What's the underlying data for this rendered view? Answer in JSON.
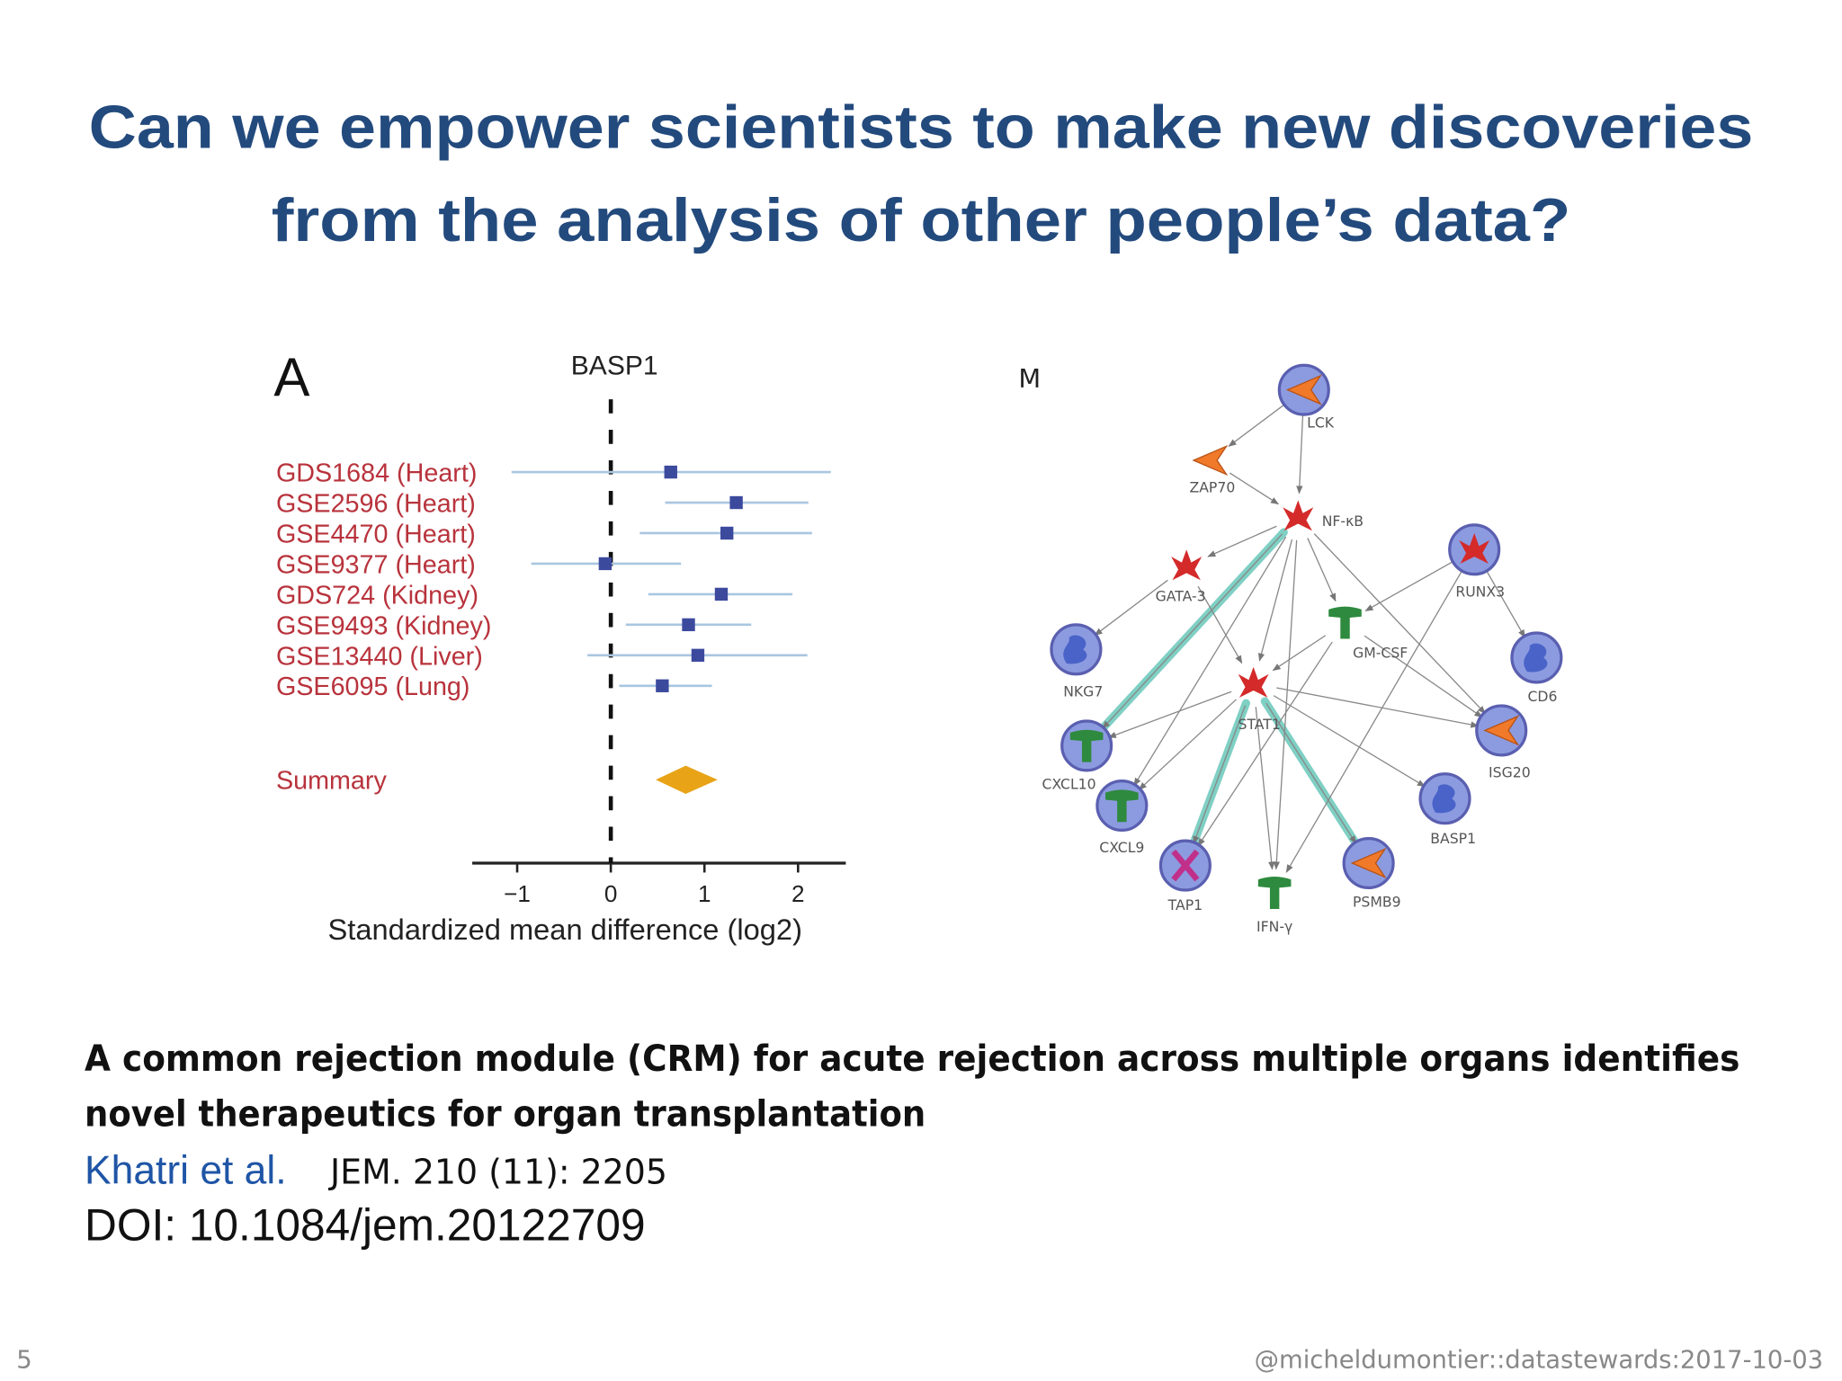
{
  "header": {
    "title_lines": [
      "Can we empower scientists to make new discoveries",
      "from the analysis of other people’s data?"
    ]
  },
  "chart_data": {
    "type": "forest",
    "panel_label": "A",
    "title": "BASP1",
    "categories": [
      "GDS1684 (Heart)",
      "GSE2596 (Heart)",
      "GSE4470 (Heart)",
      "GSE9377 (Heart)",
      "GDS724 (Kidney)",
      "GSE9493 (Kidney)",
      "GSE13440 (Liver)",
      "GSE6095 (Lung)"
    ],
    "values": [
      0.64,
      1.34,
      1.24,
      -0.06,
      1.18,
      0.83,
      0.93,
      0.55
    ],
    "ci_low": [
      -1.06,
      0.58,
      0.31,
      -0.85,
      0.4,
      0.16,
      -0.25,
      0.09
    ],
    "ci_high": [
      2.35,
      2.11,
      2.15,
      0.75,
      1.94,
      1.5,
      2.1,
      1.08
    ],
    "summary": {
      "label": "Summary",
      "value": 0.8,
      "ci_low": 0.48,
      "ci_high": 1.14
    },
    "xlabel": "Standardized mean difference (log2)",
    "xlim": [
      -1.48,
      2.51
    ],
    "xticks": [
      {
        "value": -1,
        "label": "−1"
      },
      0,
      1,
      2
    ],
    "label_color": "#b8333c",
    "ci_color": "#a9c6e0",
    "marker_color": "#3c4a9e",
    "summary_color": "#e8a317"
  },
  "network": {
    "panel_label": "M",
    "nodes": [
      {
        "label": "LCK"
      },
      {
        "label": "ZAP70"
      },
      {
        "label": "NF-κB"
      },
      {
        "label": "GATA-3"
      },
      {
        "label": "RUNX3"
      },
      {
        "label": "GM-CSF"
      },
      {
        "label": "CD6"
      },
      {
        "label": "NKG7"
      },
      {
        "label": "STAT1"
      },
      {
        "label": "ISG20"
      },
      {
        "label": "CXCL10"
      },
      {
        "label": "CXCL9"
      },
      {
        "label": "BASP1"
      },
      {
        "label": "TAP1"
      },
      {
        "label": "IFN-γ"
      },
      {
        "label": "PSMB9"
      }
    ]
  },
  "citation": {
    "title_lines": [
      "A common rejection module (CRM) for acute rejection across multiple organs identifies",
      "novel therapeutics for organ transplantation"
    ],
    "authors": "Khatri et al.",
    "journal": "JEM. 210 (11): 2205",
    "doi": "DOI: 10.1084/jem.20122709"
  },
  "footer": {
    "page": "5",
    "credit": "@micheldumontier::datastewards:2017-10-03"
  }
}
